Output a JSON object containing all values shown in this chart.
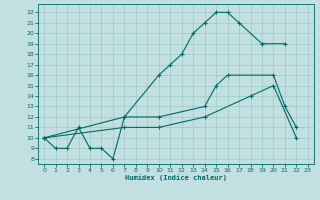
{
  "xlabel": "Humidex (Indice chaleur)",
  "background_color": "#c2e0e0",
  "grid_color": "#9ec8c8",
  "line_color": "#006868",
  "xlim": [
    -0.5,
    23.5
  ],
  "ylim": [
    7.5,
    22.8
  ],
  "xticks": [
    0,
    1,
    2,
    3,
    4,
    5,
    6,
    7,
    8,
    9,
    10,
    11,
    12,
    13,
    14,
    15,
    16,
    17,
    18,
    19,
    20,
    21,
    22,
    23
  ],
  "yticks": [
    8,
    9,
    10,
    11,
    12,
    13,
    14,
    15,
    16,
    17,
    18,
    19,
    20,
    21,
    22
  ],
  "curve1_x": [
    0,
    1,
    2,
    3,
    4,
    5,
    6,
    7,
    10,
    11,
    12,
    13,
    14,
    15,
    16,
    17,
    19,
    21
  ],
  "curve1_y": [
    10,
    9,
    9,
    11,
    9,
    9,
    8,
    12,
    16,
    17,
    18,
    20,
    21,
    22,
    22,
    21,
    19,
    19
  ],
  "curve2_x": [
    0,
    7,
    10,
    14,
    15,
    16,
    20,
    21,
    22
  ],
  "curve2_y": [
    10,
    12,
    12,
    13,
    15,
    16,
    16,
    13,
    11
  ],
  "curve3_x": [
    0,
    7,
    10,
    14,
    18,
    20,
    22
  ],
  "curve3_y": [
    10,
    11,
    11,
    12,
    14,
    15,
    10
  ]
}
